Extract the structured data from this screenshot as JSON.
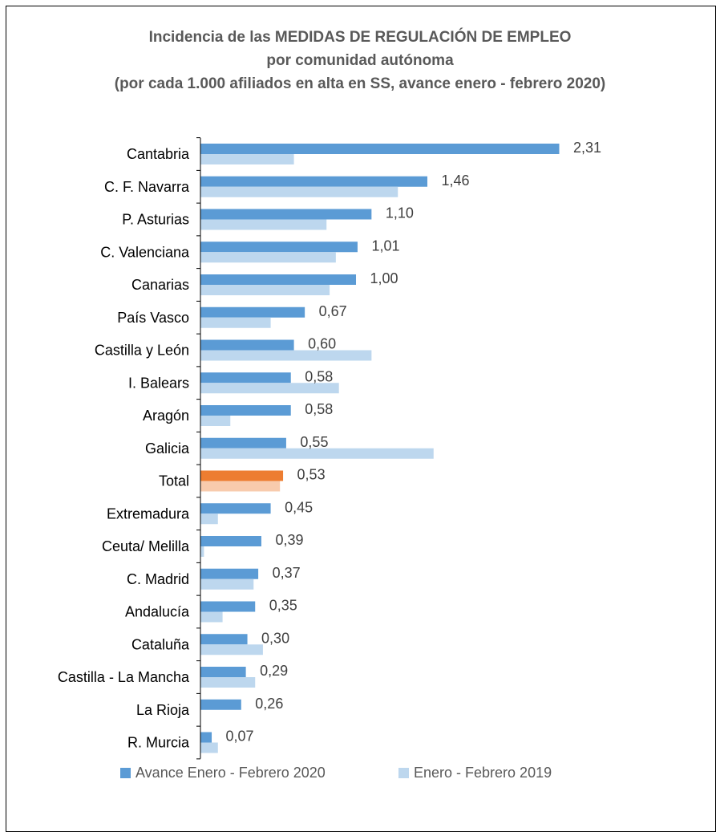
{
  "chart_data": {
    "type": "bar",
    "orientation": "horizontal",
    "title": [
      "Incidencia  de las MEDIDAS  DE REGULACIÓN DE EMPLEO",
      "por comunidad  autónoma",
      "(por cada 1.000 afiliados en alta en SS, avance enero  - febrero 2020)"
    ],
    "categories": [
      "Cantabria",
      "C. F. Navarra",
      "P. Asturias",
      "C. Valenciana",
      "Canarias",
      "País Vasco",
      "Castilla y León",
      "I. Balears",
      "Aragón",
      "Galicia",
      "Total",
      "Extremadura",
      "Ceuta/ Melilla",
      "C. Madrid",
      "Andalucía",
      "Cataluña",
      "Castilla - La Mancha",
      "La Rioja",
      "R. Murcia"
    ],
    "series": [
      {
        "name": "Avance Enero - Febrero 2020",
        "color": "#5b9bd5",
        "values": [
          2.31,
          1.46,
          1.1,
          1.01,
          1.0,
          0.67,
          0.6,
          0.58,
          0.58,
          0.55,
          0.53,
          0.45,
          0.39,
          0.37,
          0.35,
          0.3,
          0.29,
          0.26,
          0.07
        ],
        "value_labels": [
          "2,31",
          "1,46",
          "1,10",
          "1,01",
          "1,00",
          "0,67",
          "0,60",
          "0,58",
          "0,58",
          "0,55",
          "0,53",
          "0,45",
          "0,39",
          "0,37",
          "0,35",
          "0,30",
          "0,29",
          "0,26",
          "0,07"
        ]
      },
      {
        "name": "Enero - Febrero 2019",
        "color": "#bdd7ee",
        "values": [
          0.6,
          1.27,
          0.81,
          0.87,
          0.83,
          0.45,
          1.1,
          0.89,
          0.19,
          1.5,
          0.51,
          0.11,
          0.02,
          0.34,
          0.14,
          0.4,
          0.35,
          0.0,
          0.11
        ]
      }
    ],
    "highlight": {
      "category": "Total",
      "colors": [
        "#ed7d31",
        "#f8cbad"
      ]
    },
    "xlim": [
      0,
      2.31
    ],
    "grid": false,
    "legend_position": "bottom"
  }
}
